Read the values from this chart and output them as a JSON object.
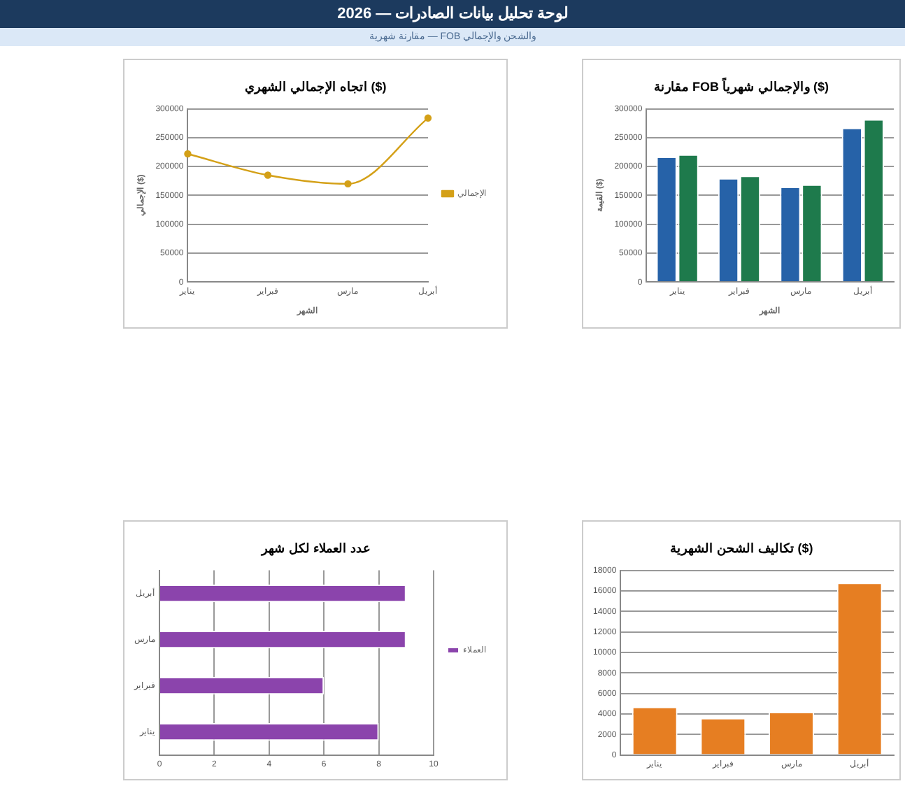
{
  "chart_data": [
    {
      "type": "other",
      "title": "لوحة تحليل بيانات الصادرات — 2026",
      "subtitle": "مقارنة شهرية — FOB والشحن والإجمالي"
    },
    {
      "type": "line",
      "title": "اتجاه الإجمالي الشهري ($)",
      "xlabel": "الشهر",
      "ylabel": "الإجمالي ($)",
      "categories": [
        "يناير",
        "فبراير",
        "مارس",
        "أبريل"
      ],
      "series": [
        {
          "name": "الإجمالي",
          "color": "#d4a017",
          "values": [
            222000,
            185000,
            170000,
            284000
          ]
        }
      ],
      "ylim": [
        0,
        300000
      ],
      "yticks": [
        0,
        50000,
        100000,
        150000,
        200000,
        250000,
        300000
      ],
      "grid": "y",
      "legend": "right",
      "marker": "circle"
    },
    {
      "type": "bar",
      "title": "مقارنة FOB والإجمالي شهرياً ($)",
      "xlabel": "الشهر",
      "ylabel": "القيمة ($)",
      "categories": [
        "يناير",
        "فبراير",
        "مارس",
        "أبريل"
      ],
      "series": [
        {
          "color": "#2662a8",
          "values": [
            217000,
            180000,
            165000,
            267000
          ]
        },
        {
          "color": "#1e7a4c",
          "values": [
            221000,
            184000,
            169000,
            282000
          ]
        }
      ],
      "ylim": [
        0,
        300000
      ],
      "yticks": [
        0,
        50000,
        100000,
        150000,
        200000,
        250000,
        300000
      ],
      "grid": "y"
    },
    {
      "type": "bar",
      "orientation": "horizontal",
      "title": "عدد العملاء لكل شهر",
      "categories": [
        "أبريل",
        "مارس",
        "فبراير",
        "يناير"
      ],
      "series": [
        {
          "name": "العملاء",
          "color": "#8b44ac",
          "values": [
            9,
            9,
            6,
            8
          ]
        }
      ],
      "xlim": [
        0,
        10
      ],
      "xticks": [
        0,
        2,
        4,
        6,
        8,
        10
      ],
      "grid": "x",
      "legend": "right"
    },
    {
      "type": "bar",
      "title": "تكاليف الشحن الشهرية ($)",
      "categories": [
        "يناير",
        "فبراير",
        "مارس",
        "أبريل"
      ],
      "series": [
        {
          "color": "#e67e22",
          "values": [
            4700,
            3600,
            4200,
            16800
          ]
        }
      ],
      "ylim": [
        0,
        18000
      ],
      "yticks": [
        0,
        2000,
        4000,
        6000,
        8000,
        10000,
        12000,
        14000,
        16000,
        18000
      ],
      "grid": "y"
    }
  ]
}
